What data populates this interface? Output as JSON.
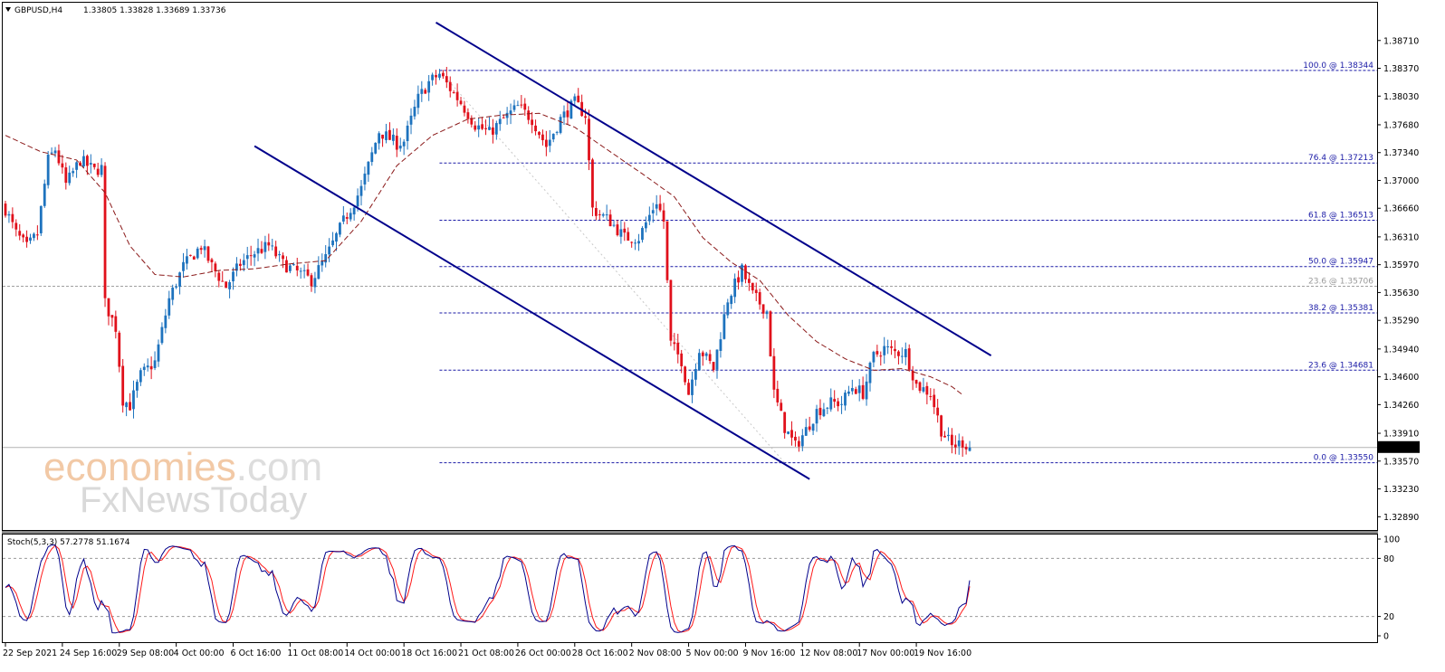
{
  "header": {
    "symbol": "GBPUSD,H4",
    "ohlc": "1.33805 1.33828 1.33689 1.33736"
  },
  "watermark": {
    "brand_main": "economies",
    "brand_tld": ".com",
    "brand_sub": "FxNewsToday"
  },
  "chart_data": {
    "type": "candlestick",
    "title": "GBPUSD,H4",
    "ohlc_label": "1.33805 1.33828 1.33689 1.33736",
    "current_price": 1.33736,
    "current_price_label": "1.33736",
    "ylim": [
      1.3275,
      1.3905
    ],
    "y_ticks": [
      1.3871,
      1.3837,
      1.3803,
      1.3768,
      1.3734,
      1.37,
      1.3666,
      1.3631,
      1.3597,
      1.3563,
      1.3529,
      1.3494,
      1.346,
      1.3426,
      1.3391,
      1.3357,
      1.3323,
      1.3289
    ],
    "y_tick_labels": [
      "1.38710",
      "1.38370",
      "1.38030",
      "1.37680",
      "1.37340",
      "1.37000",
      "1.36660",
      "1.36310",
      "1.35970",
      "1.35630",
      "1.35290",
      "1.34940",
      "1.34600",
      "1.34260",
      "1.33910",
      "1.33570",
      "1.33230",
      "1.32890"
    ],
    "x_tick_labels": [
      "22 Sep 2021",
      "24 Sep 16:00",
      "29 Sep 08:00",
      "4 Oct 00:00",
      "6 Oct 16:00",
      "11 Oct 08:00",
      "14 Oct 00:00",
      "18 Oct 16:00",
      "21 Oct 08:00",
      "26 Oct 00:00",
      "28 Oct 16:00",
      "2 Nov 08:00",
      "5 Nov 00:00",
      "9 Nov 16:00",
      "12 Nov 08:00",
      "17 Nov 00:00",
      "19 Nov 16:00"
    ],
    "x_tick_index": [
      0,
      16,
      32,
      48,
      64,
      80,
      96,
      112,
      128,
      144,
      160,
      176,
      192,
      208,
      224,
      240,
      256
    ],
    "bar_count": 272,
    "keypoints": [
      [
        0,
        1.3665
      ],
      [
        3,
        1.3635
      ],
      [
        6,
        1.3618
      ],
      [
        9,
        1.3635
      ],
      [
        12,
        1.3725
      ],
      [
        14,
        1.3738
      ],
      [
        17,
        1.3695
      ],
      [
        21,
        1.3725
      ],
      [
        25,
        1.3712
      ],
      [
        27,
        1.3715
      ],
      [
        28,
        1.355
      ],
      [
        31,
        1.352
      ],
      [
        33,
        1.3432
      ],
      [
        35,
        1.3425
      ],
      [
        38,
        1.3462
      ],
      [
        42,
        1.3478
      ],
      [
        46,
        1.3555
      ],
      [
        50,
        1.3595
      ],
      [
        55,
        1.362
      ],
      [
        58,
        1.3595
      ],
      [
        62,
        1.357
      ],
      [
        66,
        1.3598
      ],
      [
        70,
        1.3612
      ],
      [
        74,
        1.362
      ],
      [
        78,
        1.3598
      ],
      [
        82,
        1.3588
      ],
      [
        86,
        1.3578
      ],
      [
        90,
        1.3605
      ],
      [
        95,
        1.365
      ],
      [
        100,
        1.369
      ],
      [
        105,
        1.376
      ],
      [
        110,
        1.3745
      ],
      [
        112,
        1.3748
      ],
      [
        116,
        1.38
      ],
      [
        119,
        1.382
      ],
      [
        122,
        1.383
      ],
      [
        125,
        1.3812
      ],
      [
        128,
        1.3795
      ],
      [
        132,
        1.3768
      ],
      [
        136,
        1.3758
      ],
      [
        140,
        1.3775
      ],
      [
        144,
        1.379
      ],
      [
        148,
        1.3775
      ],
      [
        152,
        1.3742
      ],
      [
        156,
        1.3775
      ],
      [
        160,
        1.3795
      ],
      [
        163,
        1.378
      ],
      [
        165,
        1.3665
      ],
      [
        170,
        1.365
      ],
      [
        174,
        1.363
      ],
      [
        178,
        1.363
      ],
      [
        183,
        1.3675
      ],
      [
        185,
        1.365
      ],
      [
        187,
        1.35
      ],
      [
        190,
        1.348
      ],
      [
        192,
        1.344
      ],
      [
        195,
        1.3495
      ],
      [
        199,
        1.347
      ],
      [
        203,
        1.3555
      ],
      [
        207,
        1.359
      ],
      [
        210,
        1.356
      ],
      [
        214,
        1.354
      ],
      [
        216,
        1.344
      ],
      [
        219,
        1.3398
      ],
      [
        222,
        1.3375
      ],
      [
        225,
        1.3395
      ],
      [
        228,
        1.3418
      ],
      [
        232,
        1.3428
      ],
      [
        235,
        1.3428
      ],
      [
        238,
        1.3448
      ],
      [
        241,
        1.344
      ],
      [
        244,
        1.3485
      ],
      [
        247,
        1.3495
      ],
      [
        250,
        1.349
      ],
      [
        253,
        1.349
      ],
      [
        256,
        1.345
      ],
      [
        260,
        1.344
      ],
      [
        263,
        1.3395
      ],
      [
        266,
        1.3375
      ],
      [
        269,
        1.338
      ],
      [
        271,
        1.33736
      ]
    ],
    "ma_keypoints": [
      [
        0,
        1.3755
      ],
      [
        10,
        1.3735
      ],
      [
        20,
        1.3725
      ],
      [
        28,
        1.3685
      ],
      [
        35,
        1.362
      ],
      [
        42,
        1.3585
      ],
      [
        50,
        1.3582
      ],
      [
        60,
        1.359
      ],
      [
        70,
        1.3592
      ],
      [
        80,
        1.3598
      ],
      [
        90,
        1.3602
      ],
      [
        100,
        1.365
      ],
      [
        110,
        1.3718
      ],
      [
        120,
        1.3755
      ],
      [
        130,
        1.3775
      ],
      [
        140,
        1.378
      ],
      [
        150,
        1.3782
      ],
      [
        160,
        1.3765
      ],
      [
        170,
        1.3735
      ],
      [
        180,
        1.3705
      ],
      [
        188,
        1.368
      ],
      [
        196,
        1.363
      ],
      [
        204,
        1.36
      ],
      [
        212,
        1.3578
      ],
      [
        220,
        1.3535
      ],
      [
        228,
        1.3503
      ],
      [
        236,
        1.3482
      ],
      [
        244,
        1.3468
      ],
      [
        252,
        1.347
      ],
      [
        260,
        1.346
      ],
      [
        266,
        1.3448
      ],
      [
        269,
        1.3438
      ]
    ],
    "fibonacci": [
      {
        "label": "100.0 @ 1.38344",
        "price": 1.38344
      },
      {
        "label": "76.4 @ 1.37213",
        "price": 1.37213
      },
      {
        "label": "61.8 @ 1.36513",
        "price": 1.36513
      },
      {
        "label": "50.0 @ 1.35947",
        "price": 1.35947
      },
      {
        "label": "38.2 @ 1.35381",
        "price": 1.35381
      },
      {
        "label": "23.6 @ 1.34681",
        "price": 1.34681
      },
      {
        "label": "0.0 @ 1.33550",
        "price": 1.3355
      }
    ],
    "fib_secondary": {
      "label": "23.6 @ 1.35706",
      "price": 1.35706
    },
    "fib_start_index": 122,
    "channel": {
      "upper": [
        [
          121,
          1.3893
        ],
        [
          277,
          1.3486
        ]
      ],
      "lower": [
        [
          70,
          1.3742
        ],
        [
          226,
          1.3335
        ]
      ]
    },
    "fib_diagonal": [
      [
        122,
        1.38344
      ],
      [
        219,
        1.3355
      ]
    ],
    "stochastic": {
      "label": "Stoch(5,3,3) 57.2778 51.1674",
      "k_value": 57.2778,
      "d_value": 51.1674,
      "ylim": [
        0,
        100
      ],
      "ticks": [
        100,
        80,
        20,
        0
      ],
      "tick_labels": [
        "100",
        "80",
        "20",
        "0"
      ],
      "levels": [
        80,
        20
      ]
    }
  },
  "colors": {
    "bull": "#1e73be",
    "bear": "#e0101b",
    "ma": "#8b1a1a",
    "channel": "#00008b",
    "fib": "#1a1aa6",
    "stoch_k": "#00008b",
    "stoch_d": "#ff1a1a",
    "grid_level": "#9a9a9a"
  }
}
